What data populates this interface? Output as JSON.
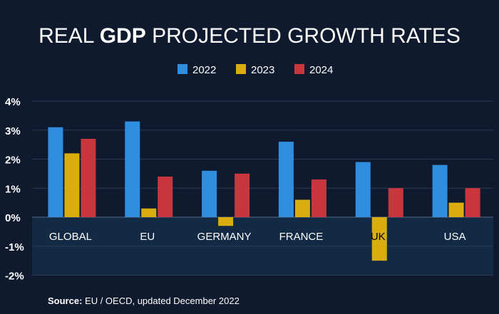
{
  "chart_data": {
    "type": "bar",
    "title_parts": [
      "REAL ",
      "GDP",
      " PROJECTED GROWTH RATES"
    ],
    "title_bold_index": 1,
    "categories": [
      "GLOBAL",
      "EU",
      "GERMANY",
      "FRANCE",
      "UK",
      "USA"
    ],
    "series": [
      {
        "name": "2022",
        "color": "#2f8ee0",
        "values": [
          3.1,
          3.3,
          1.6,
          2.6,
          1.9,
          1.8
        ]
      },
      {
        "name": "2023",
        "color": "#d9ad0e",
        "values": [
          2.2,
          0.3,
          -0.3,
          0.6,
          -1.5,
          0.5
        ]
      },
      {
        "name": "2024",
        "color": "#c9363d",
        "values": [
          2.7,
          1.4,
          1.5,
          1.3,
          1.0,
          1.0
        ]
      }
    ],
    "ylim": [
      -2,
      4
    ],
    "yticks": [
      "4%",
      "3%",
      "2%",
      "1%",
      "0%",
      "-1%",
      "-2%"
    ],
    "ytick_values": [
      4,
      3,
      2,
      1,
      0,
      -1,
      -2
    ],
    "grid": true,
    "legend_position": "top-center",
    "source_label": "Source:",
    "source_text": " EU / OECD, updated December 2022"
  }
}
